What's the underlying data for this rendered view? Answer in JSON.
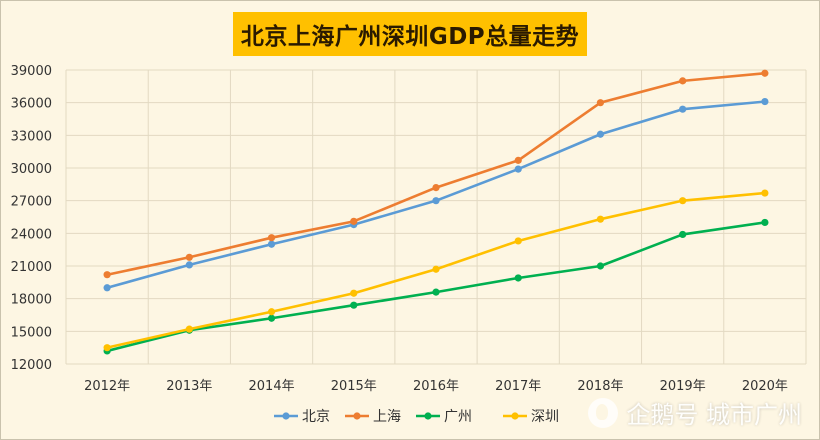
{
  "chart_data": {
    "type": "line",
    "title": "北京上海广州深圳GDP总量走势",
    "categories": [
      "2012年",
      "2013年",
      "2014年",
      "2015年",
      "2016年",
      "2017年",
      "2018年",
      "2019年",
      "2020年"
    ],
    "ylim": [
      12000,
      39000
    ],
    "yticks": [
      12000,
      15000,
      18000,
      21000,
      24000,
      27000,
      30000,
      33000,
      36000,
      39000
    ],
    "grid": true,
    "legend_position": "bottom",
    "series": [
      {
        "name": "北京",
        "color": "#5b9bd5",
        "values": [
          19000,
          21100,
          23000,
          24800,
          27000,
          29900,
          33100,
          35400,
          36100
        ]
      },
      {
        "name": "上海",
        "color": "#ed7d31",
        "values": [
          20200,
          21800,
          23600,
          25100,
          28200,
          30700,
          36000,
          38000,
          38700
        ]
      },
      {
        "name": "广州",
        "color": "#00b050",
        "values": [
          13200,
          15100,
          16200,
          17400,
          18600,
          19900,
          21000,
          23900,
          25000
        ]
      },
      {
        "name": "深圳",
        "color": "#ffc000",
        "values": [
          13500,
          15200,
          16800,
          18500,
          20700,
          23300,
          25300,
          27000,
          27700
        ]
      }
    ]
  },
  "watermark": {
    "text": "企鹅号 城市广州",
    "icon": "penguin-icon"
  }
}
